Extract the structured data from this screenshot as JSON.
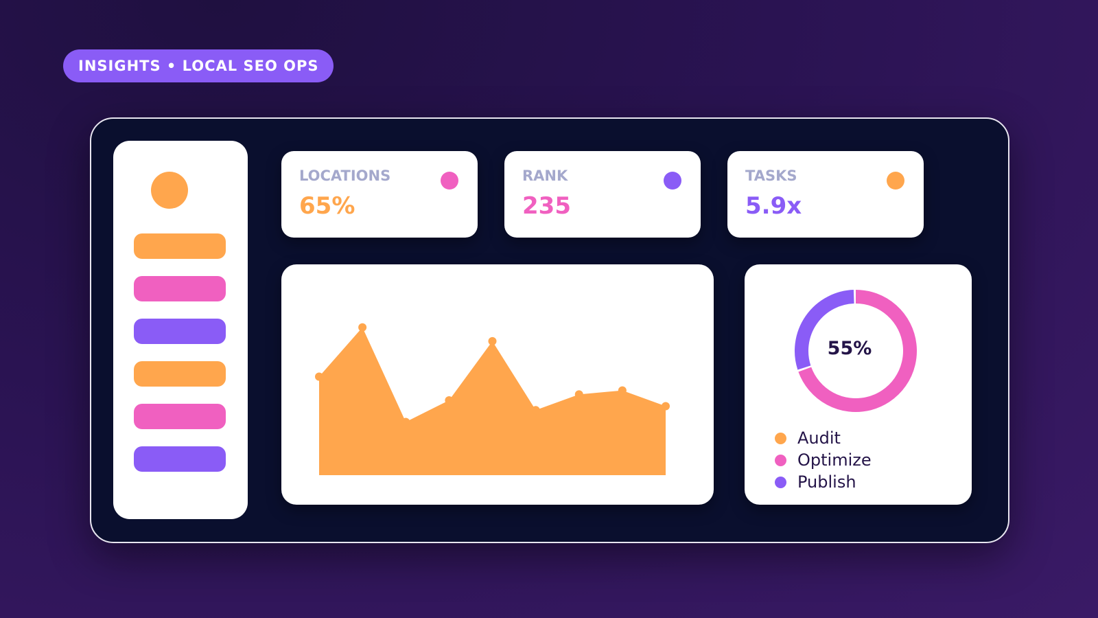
{
  "header": {
    "tag": "INSIGHTS • LOCAL SEO OPS"
  },
  "colors": {
    "orange": "#ffa64d",
    "pink": "#f060c0",
    "purple": "#8a5cf6",
    "frame": "#0a0f2e"
  },
  "sidebar": {
    "avatar_color": "#ffa64d",
    "items": [
      {
        "color": "#ffa64d"
      },
      {
        "color": "#f060c0"
      },
      {
        "color": "#8a5cf6"
      },
      {
        "color": "#ffa64d"
      },
      {
        "color": "#f060c0"
      },
      {
        "color": "#8a5cf6"
      }
    ]
  },
  "stats": [
    {
      "label": "LOCATIONS",
      "value": "65%",
      "value_color": "#ffa64d",
      "dot_color": "#f060c0"
    },
    {
      "label": "RANK",
      "value": "235",
      "value_color": "#f060c0",
      "dot_color": "#8a5cf6"
    },
    {
      "label": "TASKS",
      "value": "5.9x",
      "value_color": "#8a5cf6",
      "dot_color": "#ffa64d"
    }
  ],
  "chart_data": [
    {
      "type": "area",
      "x": [
        1,
        2,
        3,
        4,
        5,
        6,
        7,
        8,
        9
      ],
      "values": [
        50,
        75,
        27,
        38,
        68,
        33,
        41,
        43,
        35
      ],
      "ylim": [
        0,
        100
      ],
      "color": "#ffa64d",
      "grid": false
    },
    {
      "type": "pie",
      "donut": true,
      "categories": [
        "Optimize",
        "Publish"
      ],
      "values": [
        70,
        30
      ],
      "colors": [
        "#f060c0",
        "#8a5cf6"
      ],
      "center_label": "55%"
    }
  ],
  "donut": {
    "center_label": "55%"
  },
  "legend": {
    "items": [
      {
        "label": "Audit",
        "color": "#ffa64d"
      },
      {
        "label": "Optimize",
        "color": "#f060c0"
      },
      {
        "label": "Publish",
        "color": "#8a5cf6"
      }
    ]
  }
}
